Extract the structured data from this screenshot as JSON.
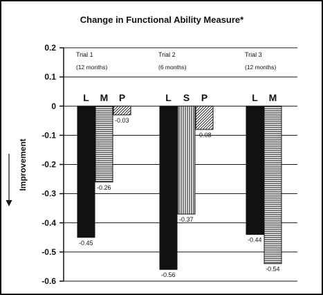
{
  "chart_data": {
    "type": "bar",
    "title": "Change in Functional Ability Measure*",
    "ylabel": "Improvement",
    "ylim": [
      -0.6,
      0.2
    ],
    "yticks": [
      "0.2",
      "0.1",
      "0",
      "-0.1",
      "-0.2",
      "-0.3",
      "-0.4",
      "-0.5",
      "-0.6"
    ],
    "grid": true,
    "groups": [
      {
        "name": "Trial 1",
        "duration": "(12 months)",
        "bars": [
          {
            "letter": "L",
            "value": -0.45,
            "label": "-0.45",
            "pattern": "solid"
          },
          {
            "letter": "M",
            "value": -0.26,
            "label": "-0.26",
            "pattern": "horizontal"
          },
          {
            "letter": "P",
            "value": -0.03,
            "label": "-0.03",
            "pattern": "diagonal"
          }
        ]
      },
      {
        "name": "Trial 2",
        "duration": "(6 months)",
        "bars": [
          {
            "letter": "L",
            "value": -0.56,
            "label": "-0.56",
            "pattern": "solid"
          },
          {
            "letter": "S",
            "value": -0.37,
            "label": "-0.37",
            "pattern": "vertical"
          },
          {
            "letter": "P",
            "value": -0.08,
            "label": "-0.08",
            "pattern": "diagonal"
          }
        ]
      },
      {
        "name": "Trial 3",
        "duration": "(12 months)",
        "bars": [
          {
            "letter": "L",
            "value": -0.44,
            "label": "-0.44",
            "pattern": "solid"
          },
          {
            "letter": "M",
            "value": -0.54,
            "label": "-0.54",
            "pattern": "horizontal"
          }
        ]
      }
    ]
  },
  "colors": {
    "ink": "#111111",
    "background": "#ffffff"
  }
}
